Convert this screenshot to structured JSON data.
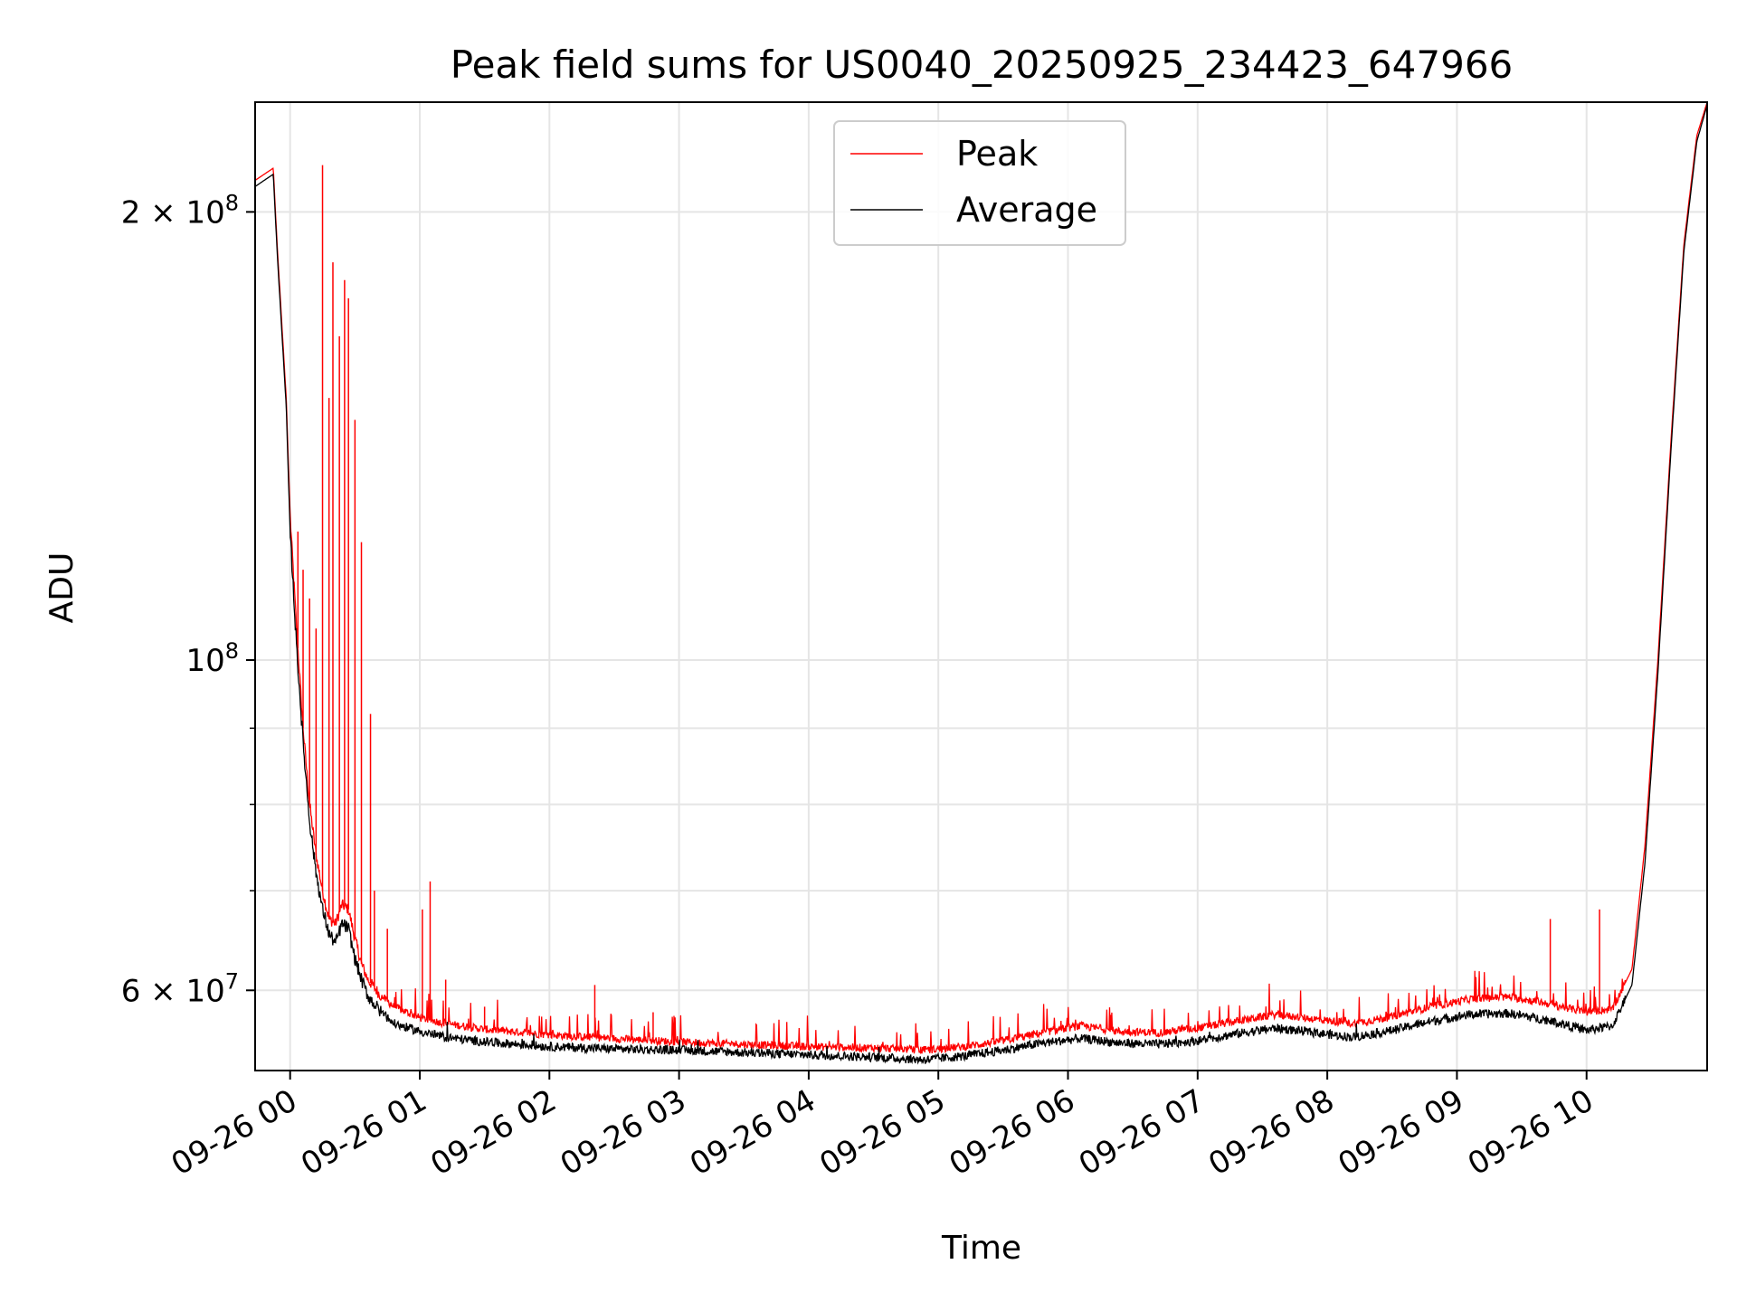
{
  "chart_data": {
    "type": "line",
    "title": "Peak field sums for US0040_20250925_234423_647966",
    "xlabel": "Time",
    "ylabel": "ADU",
    "yscale": "log",
    "ylim": [
      53000000,
      237000000
    ],
    "xlim_hours": [
      -0.27,
      10.93
    ],
    "grid": true,
    "legend_position": "top-center",
    "x_ticks": [
      {
        "hour": 0,
        "label": "09-26 00"
      },
      {
        "hour": 1,
        "label": "09-26 01"
      },
      {
        "hour": 2,
        "label": "09-26 02"
      },
      {
        "hour": 3,
        "label": "09-26 03"
      },
      {
        "hour": 4,
        "label": "09-26 04"
      },
      {
        "hour": 5,
        "label": "09-26 05"
      },
      {
        "hour": 6,
        "label": "09-26 06"
      },
      {
        "hour": 7,
        "label": "09-26 07"
      },
      {
        "hour": 8,
        "label": "09-26 08"
      },
      {
        "hour": 9,
        "label": "09-26 09"
      },
      {
        "hour": 10,
        "label": "09-26 10"
      }
    ],
    "y_major_ticks": [
      {
        "value": 200000000,
        "label_base": "2 × 10",
        "label_exp": "8"
      },
      {
        "value": 100000000,
        "label_base": "10",
        "label_exp": "8"
      },
      {
        "value": 60000000,
        "label_base": "6 × 10",
        "label_exp": "7"
      }
    ],
    "y_minor_grid": [
      70000000,
      80000000,
      90000000
    ],
    "series": [
      {
        "name": "Peak",
        "color": "#ff0000",
        "x_hours": [
          -0.27,
          -0.2,
          -0.13,
          -0.1,
          -0.03,
          0.0,
          0.05,
          0.1,
          0.15,
          0.2,
          0.25,
          0.3,
          0.35,
          0.4,
          0.45,
          0.5,
          0.55,
          0.6,
          0.7,
          0.8,
          1.0,
          1.2,
          1.5,
          2.0,
          2.5,
          3.0,
          3.5,
          4.0,
          4.5,
          4.9,
          5.2,
          5.5,
          5.8,
          6.1,
          6.4,
          6.7,
          7.0,
          7.3,
          7.6,
          7.9,
          8.2,
          8.5,
          8.8,
          9.1,
          9.4,
          9.7,
          10.0,
          10.2,
          10.35,
          10.45,
          10.55,
          10.65,
          10.75,
          10.85,
          10.93
        ],
        "values": [
          210000000,
          212000000,
          214000000,
          190000000,
          150000000,
          125000000,
          105000000,
          90000000,
          80000000,
          74000000,
          70000000,
          67000000,
          66500000,
          68500000,
          68000000,
          65000000,
          62500000,
          61000000,
          59500000,
          58500000,
          57500000,
          57000000,
          56500000,
          56000000,
          55700000,
          55400000,
          55200000,
          55000000,
          54900000,
          54700000,
          55000000,
          55500000,
          56200000,
          56800000,
          56300000,
          56200000,
          56600000,
          57200000,
          57800000,
          57400000,
          57000000,
          57600000,
          58500000,
          59200000,
          59400000,
          58800000,
          58000000,
          58300000,
          62000000,
          75000000,
          100000000,
          140000000,
          190000000,
          225000000,
          237000000
        ],
        "spikes": [
          {
            "hour": 0.25,
            "value": 215000000
          },
          {
            "hour": 0.3,
            "value": 150000000
          },
          {
            "hour": 0.33,
            "value": 185000000
          },
          {
            "hour": 0.38,
            "value": 165000000
          },
          {
            "hour": 0.42,
            "value": 180000000
          },
          {
            "hour": 0.45,
            "value": 175000000
          },
          {
            "hour": 0.5,
            "value": 145000000
          },
          {
            "hour": 0.55,
            "value": 120000000
          },
          {
            "hour": 0.06,
            "value": 122000000
          },
          {
            "hour": 0.1,
            "value": 115000000
          },
          {
            "hour": 0.15,
            "value": 110000000
          },
          {
            "hour": 0.2,
            "value": 105000000
          },
          {
            "hour": 0.62,
            "value": 92000000
          },
          {
            "hour": 0.65,
            "value": 70000000
          },
          {
            "hour": 0.75,
            "value": 66000000
          },
          {
            "hour": 1.02,
            "value": 68000000
          },
          {
            "hour": 1.08,
            "value": 71000000
          },
          {
            "hour": 1.2,
            "value": 61000000
          },
          {
            "hour": 1.5,
            "value": 58500000
          },
          {
            "hour": 2.35,
            "value": 60500000
          },
          {
            "hour": 2.8,
            "value": 58000000
          },
          {
            "hour": 9.72,
            "value": 67000000
          },
          {
            "hour": 10.1,
            "value": 68000000
          }
        ]
      },
      {
        "name": "Average",
        "color": "#000000",
        "x_hours": [
          -0.27,
          -0.2,
          -0.13,
          -0.1,
          -0.03,
          0.0,
          0.05,
          0.1,
          0.15,
          0.2,
          0.25,
          0.3,
          0.35,
          0.4,
          0.45,
          0.5,
          0.55,
          0.6,
          0.7,
          0.8,
          1.0,
          1.2,
          1.5,
          2.0,
          2.5,
          3.0,
          3.5,
          4.0,
          4.5,
          4.9,
          5.2,
          5.5,
          5.8,
          6.1,
          6.4,
          6.7,
          7.0,
          7.3,
          7.6,
          7.9,
          8.2,
          8.5,
          8.8,
          9.1,
          9.4,
          9.7,
          10.0,
          10.2,
          10.35,
          10.45,
          10.55,
          10.65,
          10.75,
          10.85,
          10.93
        ],
        "values": [
          208000000,
          210000000,
          212000000,
          188000000,
          148000000,
          122000000,
          102000000,
          88000000,
          78000000,
          72000000,
          68000000,
          65500000,
          64500000,
          66500000,
          66000000,
          63000000,
          61000000,
          59500000,
          58000000,
          57000000,
          56300000,
          55800000,
          55400000,
          55000000,
          54800000,
          54700000,
          54500000,
          54300000,
          54100000,
          53900000,
          54200000,
          54700000,
          55300000,
          55700000,
          55300000,
          55200000,
          55500000,
          56100000,
          56600000,
          56200000,
          55800000,
          56400000,
          57200000,
          57800000,
          57900000,
          57300000,
          56400000,
          56800000,
          60500000,
          73000000,
          98000000,
          138000000,
          188000000,
          223000000,
          236000000
        ]
      }
    ]
  }
}
